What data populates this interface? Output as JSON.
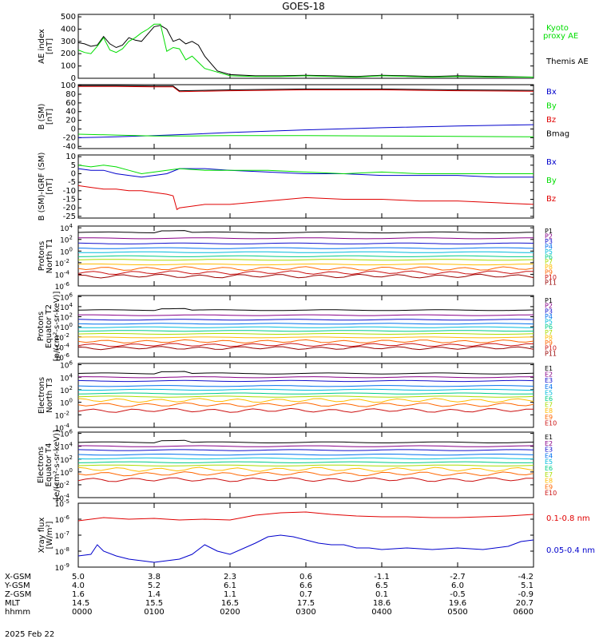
{
  "title": "GOES-18",
  "date": "2025 Feb 22",
  "colors": {
    "black": "#000000",
    "red": "#e00000",
    "green": "#00dd00",
    "blue": "#0000cc",
    "p_palette": [
      "#000000",
      "#880088",
      "#1010cc",
      "#0070ee",
      "#00bbdd",
      "#00cc88",
      "#aadd00",
      "#ffbb00",
      "#ff6600",
      "#cc1010",
      "#990000"
    ]
  },
  "chart_data": [
    {
      "type": "line",
      "id": "ae",
      "ylabel": [
        "AE index",
        "[nT]"
      ],
      "yticks": [
        "500",
        "400",
        "300",
        "200",
        "100",
        "0"
      ],
      "ylim": [
        0,
        520
      ],
      "yscale": "linear",
      "series": [
        {
          "name": "Themis AE",
          "color": "#000000",
          "x": [
            0,
            5,
            10,
            15,
            20,
            25,
            30,
            35,
            40,
            45,
            50,
            55,
            60,
            65,
            70,
            75,
            80,
            85,
            90,
            95,
            100,
            110,
            120,
            140,
            160,
            180,
            200,
            220,
            240,
            260,
            280,
            300,
            330,
            360
          ],
          "y": [
            290,
            280,
            260,
            270,
            340,
            280,
            250,
            270,
            330,
            310,
            300,
            360,
            420,
            430,
            400,
            300,
            320,
            280,
            300,
            270,
            180,
            60,
            30,
            20,
            20,
            25,
            20,
            15,
            25,
            20,
            15,
            20,
            15,
            10
          ]
        },
        {
          "name": "Kyoto proxy AE",
          "label": [
            "Kyoto",
            "proxy AE"
          ],
          "color": "#00dd00",
          "x": [
            0,
            5,
            10,
            15,
            20,
            25,
            30,
            35,
            40,
            45,
            50,
            55,
            60,
            65,
            70,
            75,
            80,
            85,
            90,
            95,
            100,
            110,
            120,
            140,
            160,
            180,
            200,
            220,
            240,
            260,
            280,
            300,
            330,
            360
          ],
          "y": [
            230,
            210,
            200,
            260,
            330,
            230,
            210,
            240,
            300,
            330,
            370,
            400,
            440,
            440,
            220,
            250,
            240,
            150,
            180,
            130,
            80,
            50,
            20,
            15,
            15,
            20,
            15,
            10,
            20,
            15,
            10,
            15,
            10,
            10
          ]
        }
      ]
    },
    {
      "type": "line",
      "id": "bsm",
      "ylabel": [
        "B (SM)",
        "[nT]"
      ],
      "yticks": [
        "100",
        "80",
        "60",
        "40",
        "20",
        "0",
        "-20",
        "-40"
      ],
      "ylim": [
        -45,
        102
      ],
      "yscale": "linear",
      "series": [
        {
          "name": "Bx",
          "color": "#0000cc",
          "x": [
            0,
            30,
            60,
            90,
            120,
            180,
            240,
            300,
            360
          ],
          "y": [
            -20,
            -18,
            -15,
            -12,
            -8,
            -2,
            3,
            7,
            10
          ]
        },
        {
          "name": "By",
          "color": "#00dd00",
          "x": [
            0,
            30,
            60,
            90,
            120,
            180,
            240,
            300,
            360
          ],
          "y": [
            -12,
            -14,
            -16,
            -16,
            -15,
            -15,
            -16,
            -17,
            -18
          ]
        },
        {
          "name": "Bz",
          "color": "#e00000",
          "x": [
            0,
            30,
            60,
            75,
            80,
            120,
            180,
            240,
            300,
            360
          ],
          "y": [
            98,
            98,
            97,
            97,
            86,
            88,
            90,
            90,
            88,
            87
          ]
        },
        {
          "name": "Bmag",
          "color": "#000000",
          "x": [
            0,
            30,
            60,
            75,
            80,
            120,
            180,
            240,
            300,
            360
          ],
          "y": [
            100,
            100,
            99,
            99,
            88,
            90,
            92,
            92,
            90,
            89
          ]
        }
      ]
    },
    {
      "type": "line",
      "id": "digrf",
      "ylabel": [
        "B (SM)-IGRF (SM)",
        "[nT]"
      ],
      "yticks": [
        "10",
        "5",
        "0",
        "-5",
        "-10",
        "-15",
        "-20",
        "-25"
      ],
      "ylim": [
        -26,
        11
      ],
      "yscale": "linear",
      "series": [
        {
          "name": "Bx",
          "color": "#0000cc",
          "x": [
            0,
            10,
            20,
            30,
            40,
            50,
            60,
            70,
            80,
            100,
            120,
            150,
            180,
            210,
            240,
            270,
            300,
            330,
            360
          ],
          "y": [
            3,
            2,
            2,
            0,
            -1,
            -2,
            -1,
            0,
            3,
            3,
            2,
            1,
            0,
            0,
            -1,
            -1,
            -1,
            -2,
            -2
          ]
        },
        {
          "name": "By",
          "color": "#00dd00",
          "x": [
            0,
            10,
            20,
            30,
            40,
            50,
            60,
            70,
            80,
            100,
            120,
            150,
            180,
            210,
            240,
            270,
            300,
            330,
            360
          ],
          "y": [
            5,
            4,
            5,
            4,
            2,
            0,
            1,
            2,
            3,
            2,
            2,
            2,
            1,
            0,
            1,
            0,
            0,
            0,
            0
          ]
        },
        {
          "name": "Bz",
          "color": "#e00000",
          "x": [
            0,
            10,
            20,
            30,
            40,
            50,
            60,
            70,
            75,
            78,
            80,
            90,
            100,
            120,
            150,
            180,
            210,
            240,
            270,
            300,
            330,
            360
          ],
          "y": [
            -7,
            -8,
            -9,
            -9,
            -10,
            -10,
            -11,
            -12,
            -13,
            -21,
            -20,
            -19,
            -18,
            -18,
            -16,
            -14,
            -15,
            -15,
            -16,
            -16,
            -17,
            -18
          ]
        }
      ]
    },
    {
      "type": "line",
      "id": "protons-t1",
      "ylabel": [
        "Protons",
        "North T1"
      ],
      "yscale": "log",
      "ylim_exp": [
        -6,
        4.3
      ],
      "yticks": [
        {
          "base": "10",
          "exp": "4"
        },
        {
          "base": "10",
          "exp": "2"
        },
        {
          "base": "10",
          "exp": "0"
        },
        {
          "base": "10",
          "exp": "-2"
        },
        {
          "base": "10",
          "exp": "-4"
        },
        {
          "base": "10",
          "exp": "-6"
        }
      ],
      "channels": [
        "P1",
        "P2",
        "P3",
        "P4",
        "P5",
        "P6",
        "P7",
        "P8",
        "P9",
        "P10",
        "P11"
      ],
      "levels_log10": [
        3.2,
        2.2,
        1.3,
        0.5,
        -0.2,
        -0.9,
        -1.5,
        -2.3,
        -3.0,
        -3.7,
        -4.3
      ]
    },
    {
      "type": "line",
      "id": "protons-t2",
      "ylabel": [
        "Protons",
        "Equator T2",
        "[p/(cm²-s-sr-keV)]"
      ],
      "yscale": "log",
      "ylim_exp": [
        -6,
        6.2
      ],
      "yticks": [
        {
          "base": "10",
          "exp": "6"
        },
        {
          "base": "10",
          "exp": "4"
        },
        {
          "base": "10",
          "exp": "2"
        },
        {
          "base": "10",
          "exp": "0"
        },
        {
          "base": "10",
          "exp": "-2"
        },
        {
          "base": "10",
          "exp": "-4"
        },
        {
          "base": "10",
          "exp": "-6"
        }
      ],
      "channels": [
        "P1",
        "P2",
        "P3",
        "P4",
        "P5",
        "P6",
        "P7",
        "P8",
        "P9",
        "P10",
        "P11"
      ],
      "levels_log10": [
        3.3,
        2.3,
        1.4,
        0.6,
        -0.1,
        -0.8,
        -1.4,
        -2.1,
        -2.9,
        -3.6,
        -4.2
      ]
    },
    {
      "type": "line",
      "id": "electrons-t3",
      "ylabel": [
        "Electrons",
        "North T3"
      ],
      "yscale": "log",
      "ylim_exp": [
        -4,
        6.2
      ],
      "yticks": [
        {
          "base": "10",
          "exp": "6"
        },
        {
          "base": "10",
          "exp": "4"
        },
        {
          "base": "10",
          "exp": "2"
        },
        {
          "base": "10",
          "exp": "0"
        },
        {
          "base": "10",
          "exp": "-2"
        },
        {
          "base": "10",
          "exp": "-4"
        }
      ],
      "channels": [
        "E1",
        "E2",
        "E3",
        "E4",
        "E5",
        "E6",
        "E7",
        "E8",
        "E9",
        "E10"
      ],
      "levels_log10": [
        4.6,
        4.0,
        3.4,
        2.6,
        2.0,
        1.4,
        0.9,
        0.3,
        -0.4,
        -1.3
      ]
    },
    {
      "type": "line",
      "id": "electrons-t4",
      "ylabel": [
        "Electrons",
        "Equator T4",
        "[e/(cm²-s-sr-keV)]"
      ],
      "yscale": "log",
      "ylim_exp": [
        -4,
        6.2
      ],
      "yticks": [
        {
          "base": "10",
          "exp": "6"
        },
        {
          "base": "10",
          "exp": "4"
        },
        {
          "base": "10",
          "exp": "2"
        },
        {
          "base": "10",
          "exp": "0"
        },
        {
          "base": "10",
          "exp": "-2"
        },
        {
          "base": "10",
          "exp": "-4"
        }
      ],
      "channels": [
        "E1",
        "E2",
        "E3",
        "E4",
        "E5",
        "E6",
        "E7",
        "E8",
        "E9",
        "E10"
      ],
      "levels_log10": [
        4.6,
        4.0,
        3.4,
        2.7,
        2.1,
        1.5,
        1.0,
        0.4,
        -0.3,
        -1.2
      ]
    },
    {
      "type": "line",
      "id": "xray",
      "ylabel": [
        "Xray flux",
        "[W/m²]"
      ],
      "yscale": "log",
      "ylim_exp": [
        -9,
        -5
      ],
      "yticks": [
        {
          "base": "10",
          "exp": "-5"
        },
        {
          "base": "10",
          "exp": "-6"
        },
        {
          "base": "10",
          "exp": "-7"
        },
        {
          "base": "10",
          "exp": "-8"
        },
        {
          "base": "10",
          "exp": "-9"
        }
      ],
      "series": [
        {
          "name": "0.1-0.8 nm",
          "color": "#e00000",
          "x": [
            0,
            20,
            40,
            60,
            80,
            100,
            120,
            140,
            160,
            180,
            200,
            220,
            240,
            260,
            280,
            300,
            320,
            340,
            360
          ],
          "y": [
            -6.1,
            -5.9,
            -6.0,
            -5.95,
            -6.05,
            -6.0,
            -6.05,
            -5.75,
            -5.6,
            -5.55,
            -5.7,
            -5.8,
            -5.85,
            -5.85,
            -5.9,
            -5.9,
            -5.85,
            -5.8,
            -5.7
          ]
        },
        {
          "name": "0.05-0.4 nm",
          "color": "#0000cc",
          "x": [
            0,
            10,
            15,
            20,
            30,
            40,
            50,
            60,
            70,
            80,
            90,
            100,
            110,
            120,
            140,
            150,
            160,
            170,
            180,
            190,
            200,
            210,
            220,
            230,
            240,
            260,
            280,
            300,
            320,
            340,
            350,
            360
          ],
          "y": [
            -8.3,
            -8.2,
            -7.6,
            -8.0,
            -8.3,
            -8.5,
            -8.6,
            -8.7,
            -8.6,
            -8.5,
            -8.2,
            -7.6,
            -8.0,
            -8.2,
            -7.5,
            -7.1,
            -7.0,
            -7.1,
            -7.3,
            -7.5,
            -7.6,
            -7.6,
            -7.8,
            -7.8,
            -7.9,
            -7.8,
            -7.9,
            -7.8,
            -7.9,
            -7.7,
            -7.4,
            -7.3
          ]
        }
      ]
    }
  ],
  "xaxis": {
    "rows": [
      {
        "label": "X-GSM",
        "values": [
          "5.0",
          "3.8",
          "2.3",
          "0.6",
          "-1.1",
          "-2.7",
          "-4.2"
        ]
      },
      {
        "label": "Y-GSM",
        "values": [
          "4.0",
          "5.2",
          "6.1",
          "6.6",
          "6.5",
          "6.0",
          "5.1"
        ]
      },
      {
        "label": "Z-GSM",
        "values": [
          "1.6",
          "1.4",
          "1.1",
          "0.7",
          "0.1",
          "-0.5",
          "-0.9"
        ]
      },
      {
        "label": "MLT",
        "values": [
          "14.5",
          "15.5",
          "16.5",
          "17.5",
          "18.6",
          "19.6",
          "20.7"
        ]
      },
      {
        "label": "hhmm",
        "values": [
          "0000",
          "0100",
          "0200",
          "0300",
          "0400",
          "0500",
          "0600"
        ]
      }
    ]
  }
}
